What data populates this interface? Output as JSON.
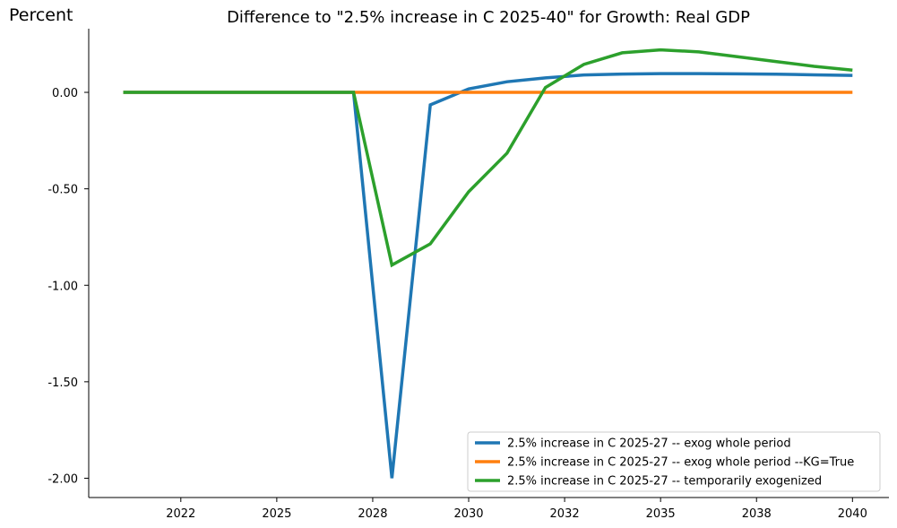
{
  "chart_data": {
    "type": "line",
    "title": "Difference to \"2.5% increase in C 2025-40\" for Growth: Real GDP",
    "ylabel": "Percent",
    "xlabel": "",
    "x": [
      2021,
      2022,
      2023,
      2024,
      2025,
      2026,
      2027,
      2028,
      2029,
      2030,
      2031,
      2032,
      2033,
      2034,
      2035,
      2036,
      2037,
      2038,
      2039,
      2040
    ],
    "x_tick_labels": [
      {
        "value": 2022.5,
        "label": "2022"
      },
      {
        "value": 2025,
        "label": "2025"
      },
      {
        "value": 2027.5,
        "label": "2028"
      },
      {
        "value": 2030,
        "label": "2030"
      },
      {
        "value": 2032.5,
        "label": "2032"
      },
      {
        "value": 2035,
        "label": "2035"
      },
      {
        "value": 2037.5,
        "label": "2038"
      },
      {
        "value": 2040,
        "label": "2040"
      }
    ],
    "y_ticks": [
      0.0,
      -0.5,
      -1.0,
      -1.5,
      -2.0
    ],
    "y_tick_labels": [
      "0.00",
      "-0.50",
      "-1.00",
      "-1.50",
      "-2.00"
    ],
    "xlim": [
      2020.1,
      2040.95
    ],
    "ylim": [
      -2.1,
      0.33
    ],
    "grid": false,
    "legend_position": "bottom-right",
    "series": [
      {
        "name": "2.5% increase in C 2025-27 -- exog whole period",
        "color": "#1f77b4",
        "values": [
          0,
          0,
          0,
          0,
          0,
          0,
          0,
          -2.0,
          -0.065,
          0.018,
          0.055,
          0.075,
          0.09,
          0.095,
          0.097,
          0.097,
          0.096,
          0.094,
          0.091,
          0.088
        ]
      },
      {
        "name": "2.5% increase in C 2025-27 -- exog whole period --KG=True",
        "color": "#ff7f0e",
        "values": [
          0,
          0,
          0,
          0,
          0,
          0,
          0,
          0,
          0,
          0,
          0,
          0,
          0,
          0,
          0,
          0,
          0,
          0,
          0,
          0
        ]
      },
      {
        "name": "2.5% increase in C 2025-27 -- temporarily exogenized",
        "color": "#2ca02c",
        "values": [
          0,
          0,
          0,
          0,
          0,
          0,
          0,
          -0.895,
          -0.785,
          -0.515,
          -0.315,
          0.025,
          0.145,
          0.205,
          0.22,
          0.21,
          0.185,
          0.16,
          0.135,
          0.115
        ]
      }
    ]
  }
}
